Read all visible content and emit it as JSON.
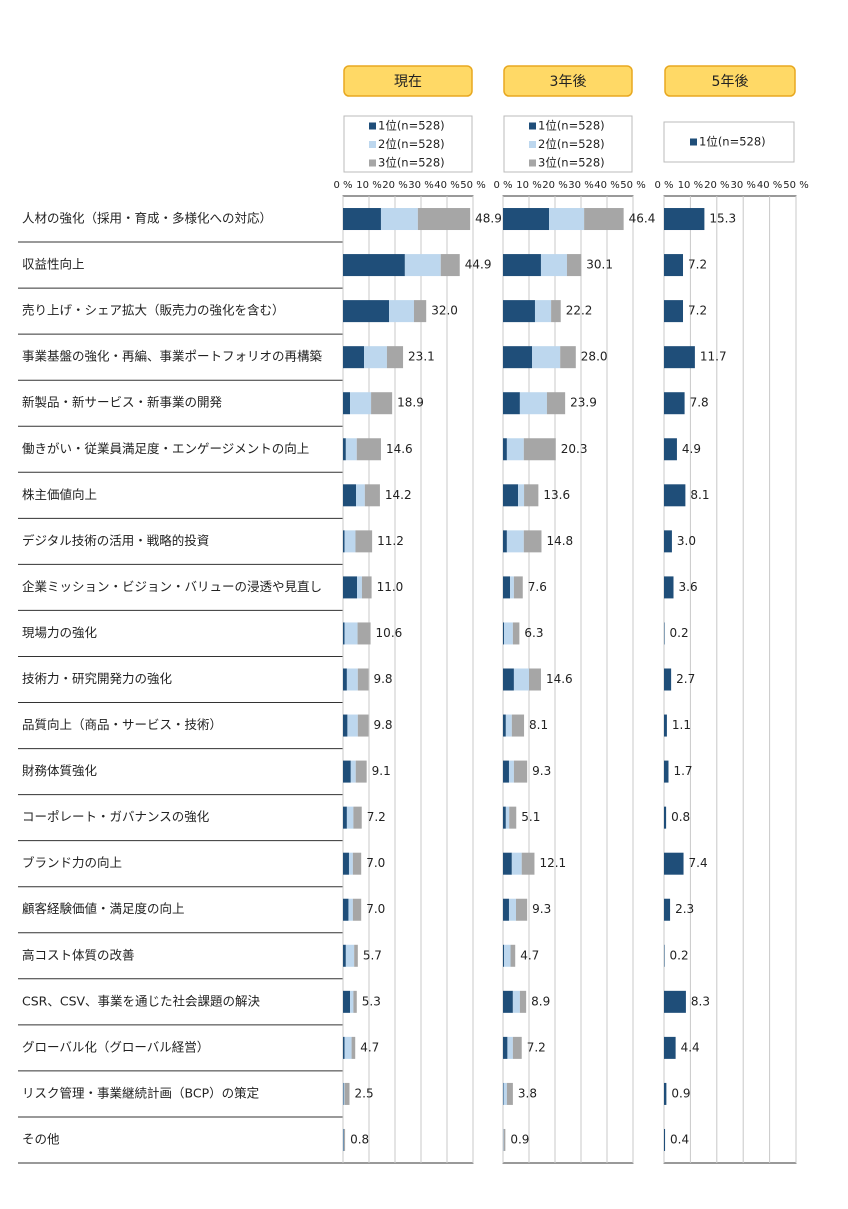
{
  "chart_data": [
    {
      "type": "stacked-bar",
      "title": "現在",
      "categories": [
        "人材の強化（採用・育成・多様化への対応）",
        "収益性向上",
        "売り上げ・シェア拡大（販売力の強化を含む）",
        "事業基盤の強化・再編、事業ポートフォリオの再構築",
        "新製品・新サービス・新事業の開発",
        "働きがい・従業員満足度・エンゲージメントの向上",
        "株主価値向上",
        "デジタル技術の活用・戦略的投資",
        "企業ミッション・ビジョン・バリューの浸透や見直し",
        "現場力の強化",
        "技術力・研究開発力の強化",
        "品質向上（商品・サービス・技術）",
        "財務体質強化",
        "コーポレート・ガバナンスの強化",
        "ブランド力の向上",
        "顧客経験価値・満足度の向上",
        "高コスト体質の改善",
        "CSR、CSV、事業を通じた社会課題の解決",
        "グローバル化（グローバル経営）",
        "リスク管理・事業継続計画（BCP）の策定",
        "その他"
      ],
      "series": [
        {
          "name": "1位(n=528)",
          "color": "#1f4e79",
          "values": [
            14.6,
            23.8,
            17.7,
            8.1,
            2.7,
            1.1,
            5.0,
            0.6,
            5.4,
            0.6,
            1.5,
            1.7,
            3.0,
            1.5,
            2.3,
            2.1,
            1.1,
            2.7,
            0.6,
            0.2,
            0.2
          ]
        },
        {
          "name": "2位(n=528)",
          "color": "#bdd7ee",
          "values": [
            14.2,
            13.8,
            9.6,
            8.8,
            8.1,
            4.2,
            3.4,
            4.2,
            1.9,
            5.0,
            4.2,
            4.0,
            1.9,
            2.5,
            1.5,
            1.7,
            3.2,
            1.3,
            2.7,
            0.4,
            0.2
          ]
        },
        {
          "name": "3位(n=528)",
          "color": "#a6a6a6",
          "values": [
            20.1,
            7.3,
            4.7,
            6.2,
            8.1,
            9.3,
            5.8,
            6.4,
            3.7,
            5.0,
            4.1,
            4.1,
            4.2,
            3.2,
            3.2,
            3.2,
            1.4,
            1.3,
            1.4,
            1.9,
            0.4
          ]
        }
      ],
      "totals": [
        48.9,
        44.9,
        32.0,
        23.1,
        18.9,
        14.6,
        14.2,
        11.2,
        11.0,
        10.6,
        9.8,
        9.8,
        9.1,
        7.2,
        7.0,
        7.0,
        5.7,
        5.3,
        4.7,
        2.5,
        0.8
      ],
      "value_labels": [
        "48.9",
        "44.9",
        "32.0",
        "23.1",
        "18.9",
        "14.6",
        "14.2",
        "11.2",
        "11.0",
        "10.6",
        "9.8",
        "9.8",
        "9.1",
        "7.2",
        "7.0",
        "7.0",
        "5.7",
        "5.3",
        "4.7",
        "2.5",
        "0.8"
      ],
      "xlim": [
        0,
        50
      ],
      "xticks": [
        {
          "value": 0,
          "label": "0 %"
        },
        {
          "value": 10,
          "label": "10 %"
        },
        {
          "value": 20,
          "label": "20 %"
        },
        {
          "value": 30,
          "label": "30 %"
        },
        {
          "value": 40,
          "label": "40 %"
        },
        {
          "value": 50,
          "label": "50 %"
        }
      ],
      "grid": true
    },
    {
      "type": "stacked-bar",
      "title": "3年後",
      "series": [
        {
          "name": "1位(n=528)",
          "color": "#1f4e79",
          "values": [
            17.7,
            14.6,
            12.3,
            11.2,
            6.5,
            1.5,
            5.8,
            1.5,
            2.7,
            0.4,
            4.2,
            1.1,
            2.3,
            1.1,
            3.4,
            2.3,
            0.4,
            3.8,
            1.7,
            0.2,
            0
          ]
        },
        {
          "name": "2位(n=528)",
          "color": "#bdd7ee",
          "values": [
            13.5,
            10.0,
            6.2,
            10.8,
            10.4,
            6.5,
            2.3,
            6.5,
            1.5,
            3.4,
            5.8,
            2.3,
            1.9,
            1.3,
            3.8,
            2.7,
            2.5,
            2.7,
            2.1,
            1.3,
            0.2
          ]
        },
        {
          "name": "3位(n=528)",
          "color": "#a6a6a6",
          "values": [
            15.2,
            5.5,
            3.7,
            6.0,
            7.0,
            12.3,
            5.5,
            6.8,
            3.4,
            2.5,
            4.6,
            4.7,
            5.1,
            2.7,
            4.9,
            4.3,
            1.8,
            2.4,
            3.4,
            2.3,
            0.7
          ]
        }
      ],
      "totals": [
        46.4,
        30.1,
        22.2,
        28.0,
        23.9,
        20.3,
        13.6,
        14.8,
        7.6,
        6.3,
        14.6,
        8.1,
        9.3,
        5.1,
        12.1,
        9.3,
        4.7,
        8.9,
        7.2,
        3.8,
        0.9
      ],
      "value_labels": [
        "46.4",
        "30.1",
        "22.2",
        "28.0",
        "23.9",
        "20.3",
        "13.6",
        "14.8",
        "7.6",
        "6.3",
        "14.6",
        "8.1",
        "9.3",
        "5.1",
        "12.1",
        "9.3",
        "4.7",
        "8.9",
        "7.2",
        "3.8",
        "0.9"
      ],
      "xlim": [
        0,
        50
      ],
      "xticks": [
        {
          "value": 0,
          "label": "0 %"
        },
        {
          "value": 10,
          "label": "10 %"
        },
        {
          "value": 20,
          "label": "20 %"
        },
        {
          "value": 30,
          "label": "30 %"
        },
        {
          "value": 40,
          "label": "40 %"
        },
        {
          "value": 50,
          "label": "50 %"
        }
      ],
      "grid": true
    },
    {
      "type": "bar",
      "title": "5年後",
      "series": [
        {
          "name": "1位(n=528)",
          "color": "#1f4e79",
          "values": [
            15.3,
            7.2,
            7.2,
            11.7,
            7.8,
            4.9,
            8.1,
            3.0,
            3.6,
            0.2,
            2.7,
            1.1,
            1.7,
            0.8,
            7.4,
            2.3,
            0.2,
            8.3,
            4.4,
            0.9,
            0.4
          ],
          "value_labels": [
            "15.3",
            "7.2",
            "7.2",
            "11.7",
            "7.8",
            "4.9",
            "8.1",
            "3.0",
            "3.6",
            "0.2",
            "2.7",
            "1.1",
            "1.7",
            "0.8",
            "7.4",
            "2.3",
            "0.2",
            "8.3",
            "4.4",
            "0.9",
            "0.4"
          ]
        }
      ],
      "xlim": [
        0,
        50
      ],
      "xticks": [
        {
          "value": 0,
          "label": "0 %"
        },
        {
          "value": 10,
          "label": "10 %"
        },
        {
          "value": 20,
          "label": "20 %"
        },
        {
          "value": 30,
          "label": "30 %"
        },
        {
          "value": 40,
          "label": "40 %"
        },
        {
          "value": 50,
          "label": "50 %"
        }
      ],
      "grid": true
    }
  ]
}
